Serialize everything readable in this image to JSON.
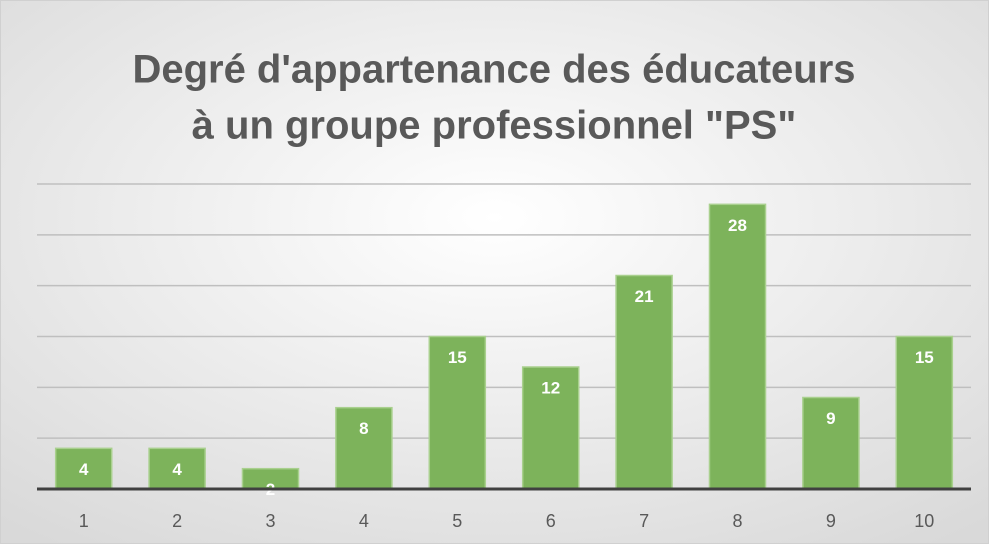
{
  "chart_data": {
    "type": "bar",
    "title": [
      "Degré d'appartenance des éducateurs",
      "à un groupe professionnel \"PS\""
    ],
    "categories": [
      "1",
      "2",
      "3",
      "4",
      "5",
      "6",
      "7",
      "8",
      "9",
      "10"
    ],
    "values": [
      4,
      4,
      2,
      8,
      15,
      12,
      21,
      28,
      9,
      15
    ],
    "color": "#7db35b",
    "ylim": [
      0,
      30
    ],
    "yticks": [
      0,
      5,
      10,
      15,
      20,
      25,
      30
    ],
    "grid": true
  }
}
